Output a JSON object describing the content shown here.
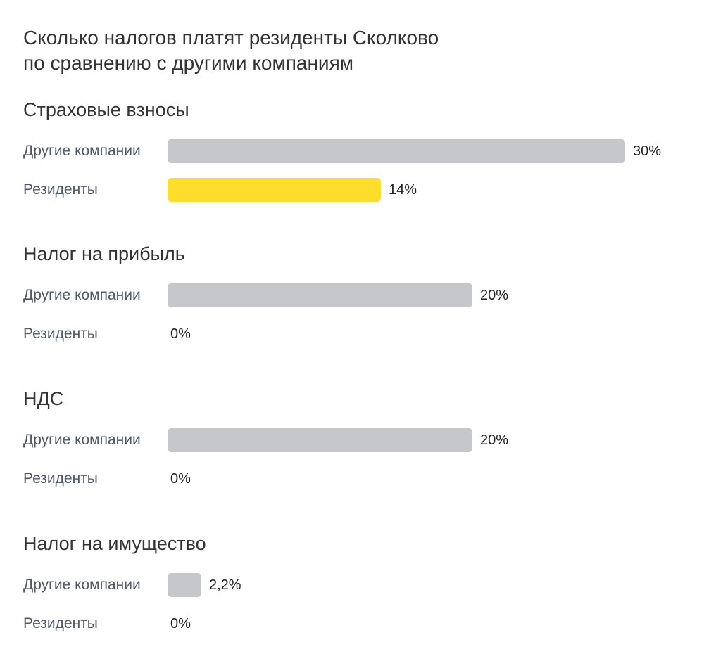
{
  "chart_data": {
    "type": "bar",
    "title": "Сколько налогов платят резиденты Сколково по сравнению с другими компаниям",
    "title_lines": [
      "Сколько налогов платят резиденты Сколково",
      "по сравнению с другими компаниям"
    ],
    "unit": "%",
    "xlim": [
      0,
      30
    ],
    "orientation": "horizontal",
    "colors": {
      "Другие компании": "#c6c7ca",
      "Резиденты": "#ffdd2d"
    },
    "groups": [
      {
        "title": "Страховые взносы",
        "rows": [
          {
            "label": "Другие компании",
            "value": 30,
            "display": "30%"
          },
          {
            "label": "Резиденты",
            "value": 14,
            "display": "14%"
          }
        ]
      },
      {
        "title": "Налог на прибыль",
        "rows": [
          {
            "label": "Другие компании",
            "value": 20,
            "display": "20%"
          },
          {
            "label": "Резиденты",
            "value": 0,
            "display": "0%"
          }
        ]
      },
      {
        "title": "НДС",
        "rows": [
          {
            "label": "Другие компании",
            "value": 20,
            "display": "20%"
          },
          {
            "label": "Резиденты",
            "value": 0,
            "display": "0%"
          }
        ]
      },
      {
        "title": "Налог на имущество",
        "rows": [
          {
            "label": "Другие компании",
            "value": 2.2,
            "display": "2,2%"
          },
          {
            "label": "Резиденты",
            "value": 0,
            "display": "0%"
          }
        ]
      }
    ]
  }
}
